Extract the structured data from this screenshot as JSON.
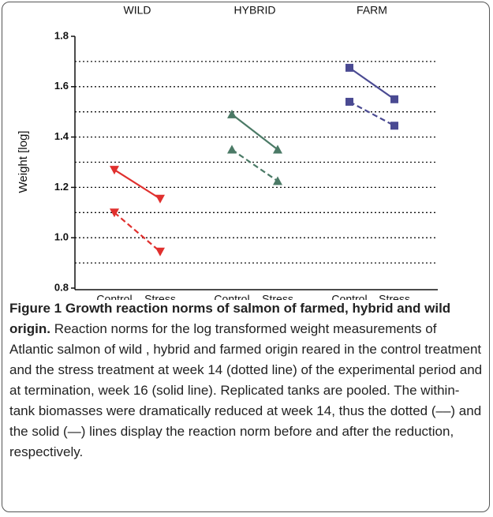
{
  "chart_data": {
    "type": "line",
    "y_label": "Weight [log]",
    "ylim": [
      0.8,
      1.8
    ],
    "yticks": [
      0.8,
      {
        "value": 1.0,
        "label": "1.0"
      },
      1.2,
      1.4,
      1.6,
      1.8
    ],
    "grid_lines": [
      0.9,
      1.0,
      1.1,
      1.2,
      1.3,
      1.4,
      1.5,
      1.6,
      1.7
    ],
    "groups": [
      {
        "name": "WILD",
        "categories": [
          "Control",
          "Stress"
        ],
        "color": "#e0302e",
        "marker": "triangle-down",
        "series": [
          {
            "style": "solid",
            "values": [
              1.27,
              1.155
            ]
          },
          {
            "style": "dashed",
            "values": [
              1.1,
              0.945
            ]
          }
        ]
      },
      {
        "name": "HYBRID",
        "categories": [
          "Control",
          "Stress"
        ],
        "color": "#4b7a66",
        "marker": "triangle-up",
        "series": [
          {
            "style": "solid",
            "values": [
              1.49,
              1.35
            ]
          },
          {
            "style": "dashed",
            "values": [
              1.35,
              1.225
            ]
          }
        ]
      },
      {
        "name": "FARM",
        "categories": [
          "Control",
          "Stress"
        ],
        "color": "#4a4a92",
        "marker": "square",
        "series": [
          {
            "style": "solid",
            "values": [
              1.675,
              1.55
            ]
          },
          {
            "style": "dashed",
            "values": [
              1.54,
              1.445
            ]
          }
        ]
      }
    ]
  },
  "caption": {
    "title": "Figure 1 Growth reaction norms of salmon of farmed, hybrid and wild origin.",
    "text": "Reaction norms for the log transformed weight measurements of Atlantic salmon of wild , hybrid and farmed origin reared in the control treatment and the stress treatment at week 14 (dotted line) of the experimental period and at termination, week 16 (solid line). Replicated tanks are pooled. The within-tank biomasses were dramatically reduced at week 14, thus the dotted (––) and the solid (—) lines display the reaction norm before and after the reduction, respectively."
  }
}
